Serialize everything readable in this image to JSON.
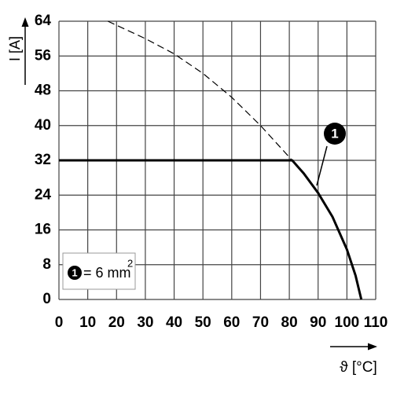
{
  "chart_data": {
    "type": "line",
    "y_label": "I [A]",
    "x_label": "ϑ [°C]",
    "xlim": [
      0,
      110
    ],
    "xticks": [
      0,
      10,
      20,
      30,
      40,
      50,
      60,
      70,
      80,
      90,
      100,
      110
    ],
    "ylim": [
      0,
      64
    ],
    "yticks": [
      0,
      8,
      16,
      24,
      32,
      40,
      48,
      56,
      64
    ],
    "grid": true,
    "series": [
      {
        "color": "#000000",
        "dashed": false,
        "x": [
          0,
          81,
          85,
          90,
          95,
          100,
          103,
          105
        ],
        "values": [
          32,
          32,
          29,
          24.5,
          19,
          11.5,
          5.5,
          0
        ]
      },
      {
        "color": "#000000",
        "dashed": true,
        "x": [
          17,
          30,
          40,
          50,
          60,
          70,
          81
        ],
        "values": [
          64,
          60,
          56.5,
          52,
          46.5,
          40,
          32
        ]
      }
    ],
    "callout": "1",
    "legend": {
      "marker": "1",
      "text": "= 6 mm",
      "superscript": "2"
    }
  }
}
